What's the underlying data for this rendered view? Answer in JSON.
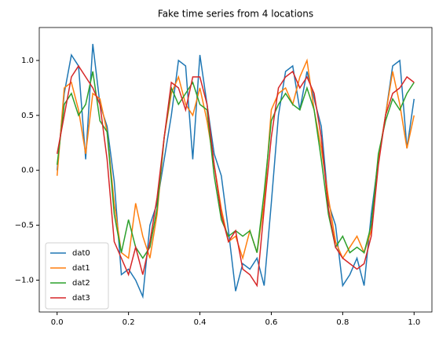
{
  "chart_data": {
    "type": "line",
    "title": "Fake time series from 4 locations",
    "x": [
      0,
      0.02,
      0.04,
      0.06,
      0.08,
      0.1,
      0.12,
      0.14,
      0.16,
      0.18,
      0.2,
      0.22,
      0.24,
      0.26,
      0.28,
      0.3,
      0.32,
      0.34,
      0.36,
      0.38,
      0.4,
      0.42,
      0.44,
      0.46,
      0.48,
      0.5,
      0.52,
      0.54,
      0.56,
      0.58,
      0.6,
      0.62,
      0.64,
      0.66,
      0.68,
      0.7,
      0.72,
      0.74,
      0.76,
      0.78,
      0.8,
      0.82,
      0.84,
      0.86,
      0.88,
      0.9,
      0.92,
      0.94,
      0.96,
      0.98,
      1.0
    ],
    "series": [
      {
        "name": "dat0",
        "color": "#1f77b4",
        "values": [
          0.0,
          0.7,
          1.05,
          0.95,
          0.1,
          1.15,
          0.6,
          0.4,
          -0.1,
          -0.95,
          -0.9,
          -1.0,
          -1.15,
          -0.5,
          -0.3,
          0.1,
          0.5,
          1.0,
          0.95,
          0.1,
          1.05,
          0.6,
          0.15,
          -0.05,
          -0.55,
          -1.1,
          -0.85,
          -0.9,
          -0.8,
          -1.05,
          -0.3,
          0.5,
          0.9,
          0.95,
          0.55,
          0.9,
          0.65,
          0.4,
          -0.3,
          -0.5,
          -1.05,
          -0.95,
          -0.8,
          -1.05,
          -0.4,
          0.1,
          0.5,
          0.95,
          1.0,
          0.2,
          0.65
        ]
      },
      {
        "name": "dat1",
        "color": "#ff7f0e",
        "values": [
          -0.05,
          0.75,
          0.8,
          0.55,
          0.15,
          0.7,
          0.65,
          0.35,
          -0.3,
          -0.75,
          -0.8,
          -0.3,
          -0.6,
          -0.8,
          -0.4,
          0.3,
          0.7,
          0.85,
          0.6,
          0.5,
          0.75,
          0.45,
          0.05,
          -0.35,
          -0.65,
          -0.6,
          -0.8,
          -0.55,
          -0.75,
          -0.3,
          0.55,
          0.7,
          0.75,
          0.6,
          0.85,
          1.0,
          0.55,
          0.2,
          -0.25,
          -0.65,
          -0.8,
          -0.7,
          -0.6,
          -0.75,
          -0.55,
          0.1,
          0.5,
          0.9,
          0.6,
          0.2,
          0.5
        ]
      },
      {
        "name": "dat2",
        "color": "#2ca02c",
        "values": [
          0.05,
          0.6,
          0.7,
          0.5,
          0.6,
          0.9,
          0.45,
          0.35,
          -0.4,
          -0.75,
          -0.45,
          -0.7,
          -0.8,
          -0.7,
          -0.35,
          0.3,
          0.75,
          0.6,
          0.7,
          0.8,
          0.6,
          0.55,
          -0.05,
          -0.45,
          -0.6,
          -0.55,
          -0.6,
          -0.55,
          -0.75,
          -0.2,
          0.45,
          0.6,
          0.7,
          0.6,
          0.55,
          0.75,
          0.55,
          0.1,
          -0.4,
          -0.7,
          -0.6,
          -0.75,
          -0.7,
          -0.75,
          -0.5,
          0.15,
          0.45,
          0.65,
          0.55,
          0.7,
          0.8
        ]
      },
      {
        "name": "dat3",
        "color": "#d62728",
        "values": [
          0.15,
          0.5,
          0.85,
          0.95,
          0.85,
          0.75,
          0.6,
          0.1,
          -0.65,
          -0.8,
          -0.95,
          -0.7,
          -0.95,
          -0.65,
          -0.25,
          0.3,
          0.8,
          0.75,
          0.55,
          0.85,
          0.85,
          0.6,
          0.05,
          -0.4,
          -0.65,
          -0.55,
          -0.9,
          -0.95,
          -1.05,
          -0.35,
          0.3,
          0.75,
          0.85,
          0.9,
          0.75,
          0.85,
          0.7,
          0.3,
          -0.35,
          -0.7,
          -0.8,
          -0.85,
          -0.9,
          -0.85,
          -0.6,
          0.05,
          0.5,
          0.7,
          0.75,
          0.85,
          0.8
        ]
      }
    ],
    "xlim": [
      -0.05,
      1.05
    ],
    "xticks": [
      {
        "value": 0,
        "label": "0.0"
      },
      0.2,
      0.4,
      0.6,
      0.8,
      {
        "value": 1,
        "label": "1.0"
      }
    ],
    "ylim": [
      -1.29,
      1.3
    ],
    "yticks": [
      {
        "value": -1,
        "label": "−1.0"
      },
      {
        "value": -0.5,
        "label": "−0.5"
      },
      {
        "value": 0,
        "label": "0.0"
      },
      0.5,
      {
        "value": 1,
        "label": "1.0"
      }
    ],
    "legend": "lower left"
  }
}
